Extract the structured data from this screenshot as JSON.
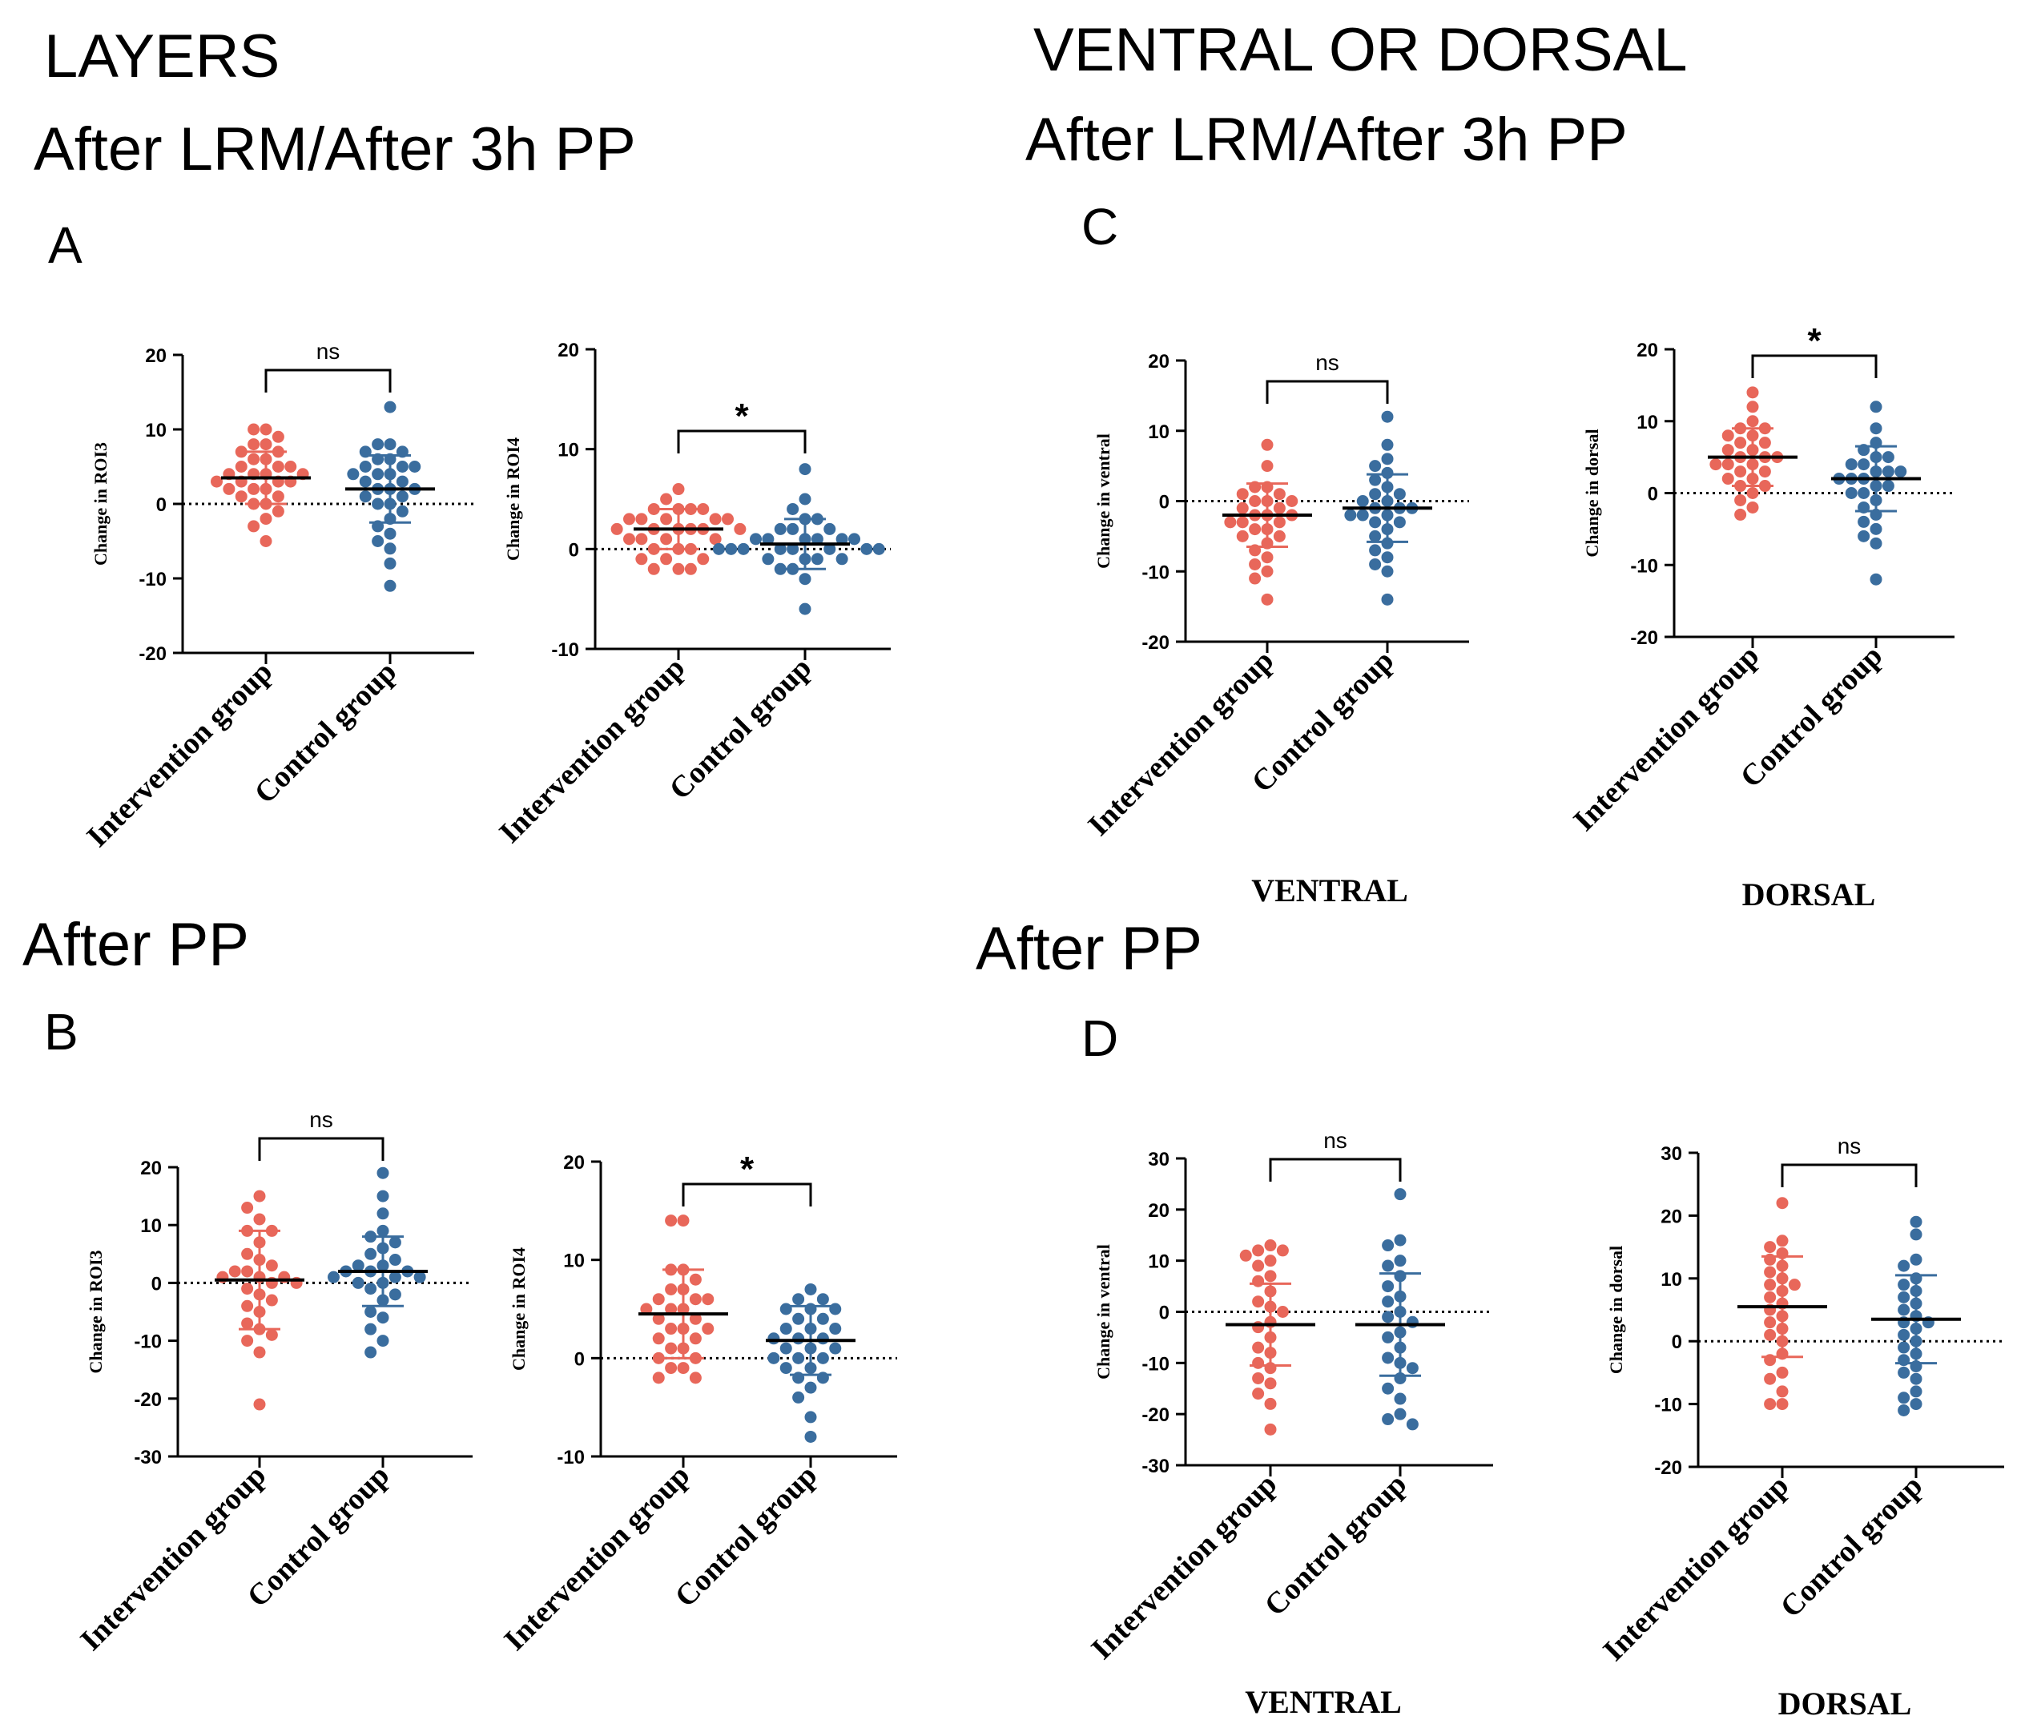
{
  "headings": {
    "layers": "LAYERS",
    "left_subtitle": "After LRM/After 3h PP",
    "ventral_dorsal": "VENTRAL OR DORSAL",
    "right_subtitle": "After LRM/After 3h PP",
    "after_pp_left": "After PP",
    "after_pp_right": "After PP"
  },
  "panel_letters": {
    "a": "A",
    "b": "B",
    "c": "C",
    "d": "D"
  },
  "captions": {
    "c_ventral": "VENTRAL",
    "c_dorsal": "DORSAL",
    "d_ventral": "VENTRAL",
    "d_dorsal": "DORSAL"
  },
  "colors": {
    "intervention": "#e8675a",
    "control": "#3a6d9e"
  },
  "chart_data": [
    {
      "id": "A1",
      "panel": "A",
      "type": "scatter",
      "ylabel": "Change in ROI3",
      "ylim": [
        -20,
        20
      ],
      "yticks": [
        20,
        10,
        0,
        -10,
        -20
      ],
      "categories": [
        "Intervention group",
        "Control group"
      ],
      "significance": "ns",
      "series": [
        {
          "name": "Intervention group",
          "mean": 3.5,
          "sd": 3.5,
          "values": [
            10,
            10,
            9,
            8,
            8,
            7,
            7,
            6,
            6,
            5,
            5,
            5,
            4,
            4,
            4,
            4,
            3,
            3,
            3,
            3,
            2,
            2,
            2,
            1,
            1,
            0,
            0,
            -1,
            -2,
            -3,
            -5
          ]
        },
        {
          "name": "Control group",
          "mean": 2,
          "sd": 4.5,
          "values": [
            13,
            8,
            8,
            7,
            7,
            6,
            6,
            5,
            5,
            5,
            4,
            4,
            4,
            3,
            3,
            2,
            2,
            2,
            1,
            1,
            0,
            0,
            -1,
            -2,
            -3,
            -4,
            -5,
            -6,
            -8,
            -11
          ]
        }
      ]
    },
    {
      "id": "A2",
      "panel": "A",
      "type": "scatter",
      "ylabel": "Change in  ROI4",
      "ylim": [
        -10,
        20
      ],
      "yticks": [
        20,
        10,
        0,
        -10
      ],
      "categories": [
        "Intervention group",
        "Control group"
      ],
      "significance": "*",
      "series": [
        {
          "name": "Intervention group",
          "mean": 2,
          "sd": 2,
          "values": [
            6,
            5,
            4,
            4,
            4,
            4,
            3,
            3,
            3,
            3,
            3,
            2,
            2,
            2,
            2,
            2,
            2,
            1,
            1,
            1,
            1,
            0,
            0,
            0,
            -1,
            -1,
            -1,
            -2,
            -2,
            -2
          ]
        },
        {
          "name": "Control group",
          "mean": 0.5,
          "sd": 2.5,
          "values": [
            8,
            5,
            4,
            3,
            3,
            2,
            2,
            2,
            1,
            1,
            1,
            1,
            1,
            1,
            0,
            0,
            0,
            0,
            0,
            0,
            0,
            0,
            -1,
            -1,
            -1,
            -1,
            -2,
            -2,
            -3,
            -6
          ]
        }
      ]
    },
    {
      "id": "B1",
      "panel": "B",
      "type": "scatter",
      "ylabel": "Change in ROI3",
      "ylim": [
        -30,
        20
      ],
      "yticks": [
        20,
        10,
        0,
        -10,
        -20,
        -30
      ],
      "categories": [
        "Intervention group",
        "Control group"
      ],
      "significance": "ns",
      "series": [
        {
          "name": "Intervention group",
          "mean": 0.5,
          "sd": 8.5,
          "values": [
            15,
            13,
            11,
            9,
            9,
            7,
            5,
            4,
            3,
            2,
            2,
            1,
            1,
            1,
            0,
            0,
            -1,
            -2,
            -3,
            -4,
            -5,
            -7,
            -8,
            -9,
            -10,
            -12,
            -21
          ]
        },
        {
          "name": "Control group",
          "mean": 2,
          "sd": 6,
          "values": [
            19,
            15,
            12,
            9,
            8,
            7,
            6,
            5,
            4,
            3,
            3,
            2,
            2,
            2,
            1,
            1,
            1,
            0,
            0,
            -1,
            -2,
            -3,
            -5,
            -6,
            -8,
            -10,
            -12
          ]
        }
      ]
    },
    {
      "id": "B2",
      "panel": "B",
      "type": "scatter",
      "ylabel": "Change in  ROI4",
      "ylim": [
        -10,
        20
      ],
      "yticks": [
        20,
        10,
        0,
        -10
      ],
      "categories": [
        "Intervention group",
        "Control group"
      ],
      "significance": "*",
      "series": [
        {
          "name": "Intervention group",
          "mean": 4.5,
          "sd": 4.5,
          "values": [
            14,
            14,
            9,
            9,
            8,
            7,
            7,
            6,
            6,
            6,
            5,
            5,
            5,
            4,
            4,
            3,
            3,
            3,
            2,
            2,
            1,
            1,
            0,
            0,
            -1,
            -1,
            -2,
            -2
          ]
        },
        {
          "name": "Control group",
          "mean": 1.8,
          "sd": 3.5,
          "values": [
            7,
            6,
            6,
            5,
            5,
            5,
            4,
            4,
            3,
            3,
            3,
            2,
            2,
            2,
            1,
            1,
            1,
            0,
            0,
            0,
            -1,
            -1,
            -2,
            -2,
            -3,
            -4,
            -6,
            -8
          ]
        }
      ]
    },
    {
      "id": "C1",
      "panel": "C",
      "type": "scatter",
      "ylabel": "Change in  ventral",
      "ylim": [
        -20,
        20
      ],
      "yticks": [
        20,
        10,
        0,
        -10,
        -20
      ],
      "categories": [
        "Intervention group",
        "Control group"
      ],
      "significance": "ns",
      "caption": "VENTRAL",
      "series": [
        {
          "name": "Intervention group",
          "mean": -2,
          "sd": 4.5,
          "values": [
            8,
            5,
            2,
            2,
            1,
            1,
            0,
            0,
            0,
            -1,
            -1,
            -2,
            -2,
            -2,
            -3,
            -3,
            -3,
            -4,
            -4,
            -5,
            -5,
            -6,
            -7,
            -8,
            -9,
            -10,
            -11,
            -14
          ]
        },
        {
          "name": "Control group",
          "mean": -1,
          "sd": 4.8,
          "values": [
            12,
            8,
            6,
            5,
            4,
            3,
            2,
            1,
            1,
            0,
            0,
            -1,
            -1,
            -1,
            -2,
            -2,
            -2,
            -3,
            -3,
            -4,
            -5,
            -6,
            -7,
            -8,
            -9,
            -10,
            -14
          ]
        }
      ]
    },
    {
      "id": "C2",
      "panel": "C",
      "type": "scatter",
      "ylabel": "Change in  dorsal",
      "ylim": [
        -20,
        20
      ],
      "yticks": [
        20,
        10,
        0,
        -10,
        -20
      ],
      "categories": [
        "Intervention group",
        "Control group"
      ],
      "significance": "*",
      "caption": "DORSAL",
      "series": [
        {
          "name": "Intervention group",
          "mean": 5,
          "sd": 4,
          "values": [
            14,
            12,
            10,
            9,
            9,
            8,
            8,
            7,
            7,
            6,
            6,
            5,
            5,
            5,
            4,
            4,
            4,
            3,
            3,
            2,
            2,
            1,
            1,
            0,
            -1,
            -2,
            -3
          ]
        },
        {
          "name": "Control group",
          "mean": 2,
          "sd": 4.5,
          "values": [
            12,
            9,
            7,
            6,
            5,
            5,
            4,
            4,
            3,
            3,
            3,
            2,
            2,
            2,
            1,
            1,
            0,
            0,
            -1,
            -2,
            -3,
            -4,
            -5,
            -6,
            -7,
            -12
          ]
        }
      ]
    },
    {
      "id": "D1",
      "panel": "D",
      "type": "scatter",
      "ylabel": "Change in  ventral",
      "ylim": [
        -30,
        30
      ],
      "yticks": [
        30,
        20,
        10,
        0,
        -10,
        -20,
        -30
      ],
      "categories": [
        "Intervention group",
        "Control group"
      ],
      "significance": "ns",
      "caption": "VENTRAL",
      "series": [
        {
          "name": "Intervention group",
          "mean": -2.5,
          "sd": 8,
          "values": [
            13,
            12,
            12,
            11,
            10,
            9,
            7,
            6,
            4,
            2,
            1,
            0,
            -2,
            -3,
            -5,
            -7,
            -8,
            -10,
            -11,
            -13,
            -14,
            -16,
            -18,
            -23
          ]
        },
        {
          "name": "Control group",
          "mean": -2.5,
          "sd": 10,
          "values": [
            23,
            14,
            13,
            10,
            9,
            7,
            5,
            3,
            2,
            0,
            -1,
            -2,
            -4,
            -5,
            -7,
            -9,
            -10,
            -11,
            -13,
            -15,
            -17,
            -20,
            -21,
            -22
          ]
        }
      ]
    },
    {
      "id": "D2",
      "panel": "D",
      "type": "scatter",
      "ylabel": "Change in  dorsal",
      "ylim": [
        -20,
        30
      ],
      "yticks": [
        30,
        20,
        10,
        0,
        -10,
        -20
      ],
      "categories": [
        "Intervention group",
        "Control group"
      ],
      "significance": "ns",
      "caption": "DORSAL",
      "series": [
        {
          "name": "Intervention group",
          "mean": 5.5,
          "sd": 8,
          "values": [
            22,
            16,
            15,
            14,
            13,
            12,
            11,
            10,
            9,
            9,
            8,
            7,
            6,
            5,
            4,
            3,
            2,
            1,
            0,
            -2,
            -3,
            -5,
            -6,
            -8,
            -10,
            -10
          ]
        },
        {
          "name": "Control group",
          "mean": 3.5,
          "sd": 7,
          "values": [
            19,
            17,
            13,
            12,
            10,
            9,
            8,
            7,
            6,
            5,
            4,
            3,
            3,
            2,
            1,
            0,
            -1,
            -2,
            -3,
            -4,
            -5,
            -6,
            -8,
            -9,
            -10,
            -11
          ]
        }
      ]
    }
  ]
}
